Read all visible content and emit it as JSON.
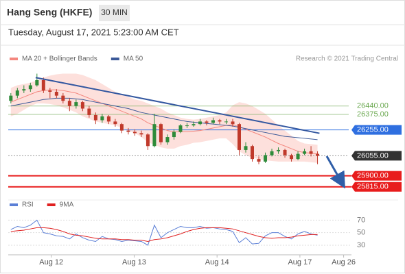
{
  "header": {
    "title": "Hang Seng (HKFE)",
    "timeframe": "30 MIN",
    "date": "Tuesday, August 17, 2021 5:23:00 AM CET"
  },
  "chart_data": [
    {
      "type": "candlestick",
      "source": "Research © 2021 Trading Central",
      "xlim": [
        -0.4,
        52.2
      ],
      "ylim": [
        25750,
        26730
      ],
      "up_color": "#2e8b3a",
      "down_color": "#c0392b",
      "ohlc": [
        [
          26480,
          26540,
          26460,
          26520
        ],
        [
          26520,
          26580,
          26500,
          26560
        ],
        [
          26560,
          26600,
          26540,
          26570
        ],
        [
          26570,
          26620,
          26550,
          26600
        ],
        [
          26600,
          26690,
          26590,
          26640
        ],
        [
          26640,
          26660,
          26540,
          26560
        ],
        [
          26560,
          26580,
          26500,
          26550
        ],
        [
          26550,
          26570,
          26500,
          26520
        ],
        [
          26520,
          26540,
          26460,
          26480
        ],
        [
          26480,
          26500,
          26400,
          26440
        ],
        [
          26440,
          26490,
          26420,
          26470
        ],
        [
          26470,
          26480,
          26400,
          26420
        ],
        [
          26420,
          26440,
          26350,
          26370
        ],
        [
          26370,
          26390,
          26300,
          26330
        ],
        [
          26330,
          26380,
          26310,
          26360
        ],
        [
          26360,
          26370,
          26300,
          26320
        ],
        [
          26320,
          26340,
          26280,
          26300
        ],
        [
          26300,
          26310,
          26230,
          26250
        ],
        [
          26250,
          26270,
          26220,
          26240
        ],
        [
          26240,
          26260,
          26210,
          26230
        ],
        [
          26230,
          26250,
          26200,
          26220
        ],
        [
          26220,
          26230,
          26100,
          26130
        ],
        [
          26130,
          26380,
          26120,
          26300
        ],
        [
          26300,
          26310,
          26140,
          26160
        ],
        [
          26160,
          26220,
          26140,
          26200
        ],
        [
          26200,
          26260,
          26180,
          26240
        ],
        [
          26240,
          26300,
          26230,
          26290
        ],
        [
          26290,
          26310,
          26270,
          26290
        ],
        [
          26290,
          26320,
          26280,
          26300
        ],
        [
          26300,
          26340,
          26290,
          26320
        ],
        [
          26320,
          26330,
          26290,
          26310
        ],
        [
          26310,
          26350,
          26300,
          26330
        ],
        [
          26330,
          26340,
          26300,
          26320
        ],
        [
          26320,
          26340,
          26300,
          26320
        ],
        [
          26320,
          26340,
          26280,
          26300
        ],
        [
          26300,
          26310,
          26060,
          26100
        ],
        [
          26100,
          26160,
          26080,
          26130
        ],
        [
          26130,
          26140,
          26010,
          26030
        ],
        [
          26030,
          26050,
          25990,
          26010
        ],
        [
          26010,
          26080,
          26000,
          26060
        ],
        [
          26060,
          26110,
          26050,
          26090
        ],
        [
          26090,
          26120,
          26070,
          26100
        ],
        [
          26100,
          26110,
          26040,
          26060
        ],
        [
          26060,
          26070,
          26010,
          26030
        ],
        [
          26030,
          26090,
          26020,
          26070
        ],
        [
          26070,
          26110,
          26060,
          26090
        ],
        [
          26090,
          26130,
          26050,
          26070
        ],
        [
          26070,
          26090,
          25990,
          26055
        ]
      ],
      "series": [
        {
          "name": "MA 20 + Bollinger Bands",
          "color": "#f4877f",
          "values": [
            26470,
            26490,
            26510,
            26530,
            26550,
            26560,
            26565,
            26565,
            26560,
            26550,
            26540,
            26520,
            26500,
            26480,
            26460,
            26440,
            26420,
            26400,
            26380,
            26360,
            26340,
            26310,
            26290,
            26270,
            26250,
            26240,
            26240,
            26240,
            26245,
            26250,
            26260,
            26270,
            26280,
            26290,
            26295,
            26280,
            26260,
            26240,
            26220,
            26200,
            26175,
            26150,
            26130,
            26110,
            26090,
            26080,
            26075,
            26070
          ],
          "upper": [
            26580,
            26600,
            26610,
            26620,
            26640,
            26660,
            26675,
            26685,
            26690,
            26690,
            26690,
            26680,
            26660,
            26640,
            26610,
            26580,
            26550,
            26530,
            26510,
            26490,
            26480,
            26460,
            26440,
            26420,
            26390,
            26370,
            26350,
            26340,
            26335,
            26340,
            26350,
            26360,
            26370,
            26390,
            26445,
            26470,
            26460,
            26440,
            26410,
            26380,
            26335,
            26290,
            26250,
            26210,
            26170,
            26150,
            26145,
            26140
          ],
          "lower": [
            26360,
            26380,
            26410,
            26440,
            26460,
            26460,
            26455,
            26445,
            26430,
            26410,
            26390,
            26360,
            26340,
            26320,
            26310,
            26300,
            26290,
            26270,
            26250,
            26230,
            26200,
            26160,
            26140,
            26120,
            26110,
            26110,
            26130,
            26140,
            26155,
            26160,
            26170,
            26180,
            26190,
            26190,
            26145,
            26090,
            26060,
            26040,
            26030,
            26020,
            26015,
            26010,
            26010,
            26010,
            26010,
            26010,
            26005,
            26000
          ]
        },
        {
          "name": "MA 50",
          "color": "#3b5998",
          "values": [
            26440,
            26450,
            26460,
            26470,
            26480,
            26490,
            26495,
            26500,
            26500,
            26500,
            26495,
            26490,
            26480,
            26470,
            26460,
            26450,
            26440,
            26430,
            26420,
            26405,
            26390,
            26380,
            26370,
            26360,
            26350,
            26340,
            26330,
            26320,
            26315,
            26310,
            26305,
            26300,
            26295,
            26290,
            26285,
            26275,
            26265,
            26255,
            26245,
            26235,
            26225,
            26215,
            26205,
            26200,
            26195,
            26190,
            26185,
            26180
          ]
        }
      ],
      "trendline": {
        "x": [
          3.8,
          47.3
        ],
        "values": [
          26660,
          26229
        ],
        "color": "#3357a0"
      },
      "levels": [
        {
          "value": 26440,
          "label": "26440.00",
          "color": "#6aa84f",
          "filled": false
        },
        {
          "value": 26375,
          "label": "26375.00",
          "color": "#6aa84f",
          "filled": false
        },
        {
          "value": 26255,
          "label": "26255.00",
          "color": "#2f6fe0",
          "filled": true
        },
        {
          "value": 26055,
          "label": "26055.00",
          "color": "#333333",
          "filled": true
        },
        {
          "value": 25900,
          "label": "25900.00",
          "color": "#e81c1c",
          "filled": true
        },
        {
          "value": 25815,
          "label": "25815.00",
          "color": "#e81c1c",
          "filled": true
        }
      ]
    },
    {
      "type": "line",
      "xlim": [
        -0.4,
        52.2
      ],
      "ylim": [
        19,
        77
      ],
      "yticks": [
        30,
        50,
        70
      ],
      "grid": true,
      "xticks": [
        {
          "value": 6.2,
          "label": "Aug 12"
        },
        {
          "value": 18.9,
          "label": "Aug 13"
        },
        {
          "value": 31.6,
          "label": "Aug 14"
        },
        {
          "value": 44.3,
          "label": "Aug 17"
        },
        {
          "value": 51.0,
          "label": "Aug 26"
        }
      ],
      "series": [
        {
          "name": "RSI",
          "color": "#5b7fd6",
          "values": [
            55,
            60,
            58,
            62,
            70,
            50,
            48,
            45,
            44,
            40,
            48,
            42,
            38,
            36,
            44,
            40,
            39,
            36,
            38,
            37,
            36,
            30,
            62,
            42,
            50,
            55,
            60,
            58,
            58,
            60,
            57,
            58,
            56,
            55,
            52,
            34,
            42,
            32,
            33,
            45,
            50,
            50,
            44,
            40,
            48,
            52,
            48,
            46
          ]
        },
        {
          "name": "9MA",
          "color": "#e02020",
          "values": [
            52,
            53,
            54,
            56,
            58,
            58,
            57,
            55,
            52,
            48,
            46,
            45,
            43,
            41,
            40,
            40,
            40,
            39,
            39,
            38,
            38,
            36,
            39,
            40,
            42,
            45,
            48,
            52,
            55,
            57,
            58,
            58,
            58,
            57,
            56,
            53,
            50,
            47,
            44,
            42,
            41,
            42,
            42,
            43,
            45,
            46,
            47,
            47
          ]
        }
      ]
    }
  ]
}
